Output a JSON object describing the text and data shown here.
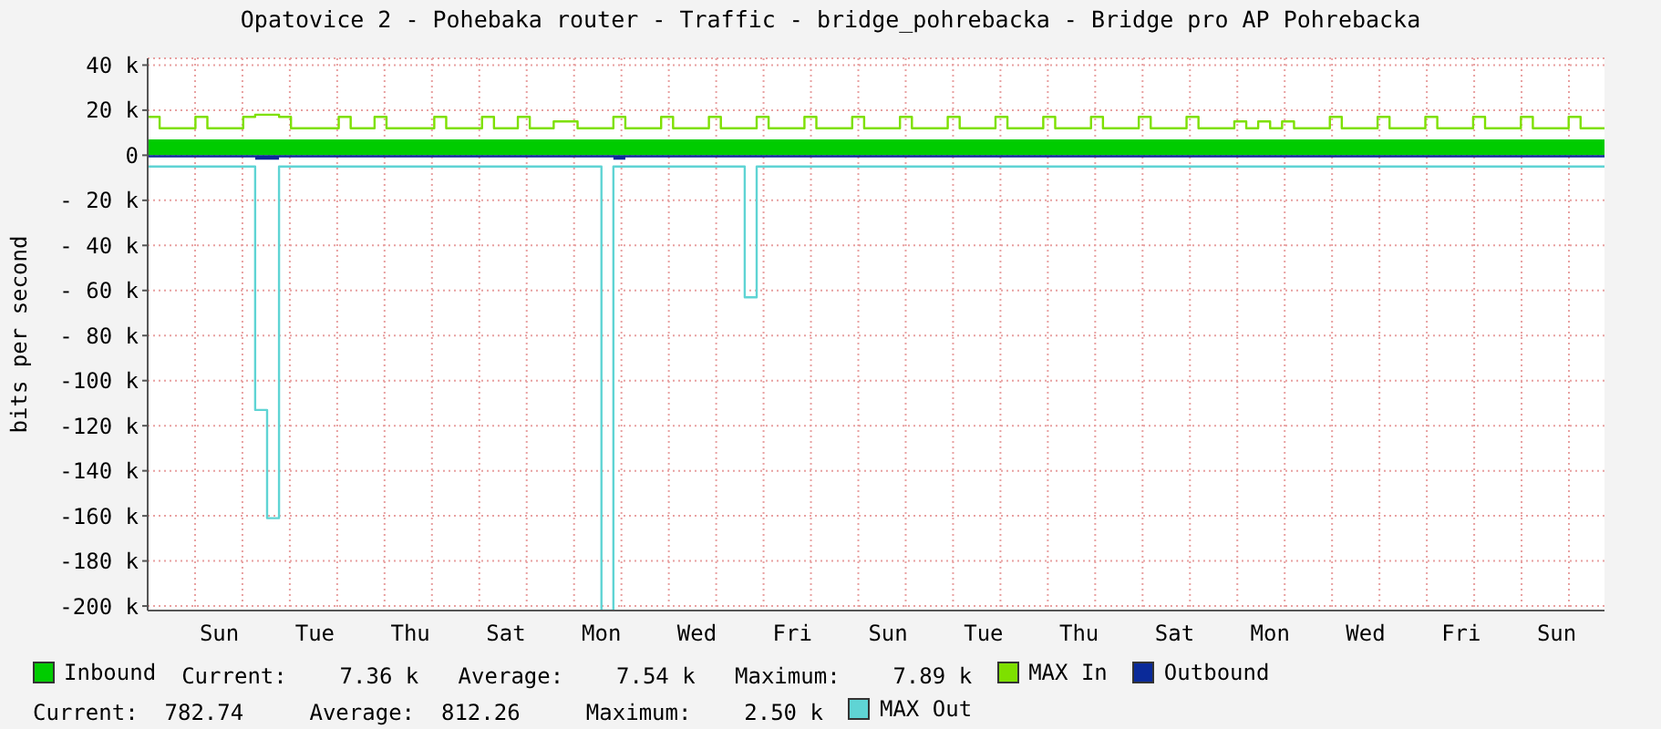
{
  "chart_data": {
    "type": "step",
    "title": "Opatovice 2 - Pohebaka router - Traffic - bridge_pohrebacka - Bridge pro AP Pohrebacka",
    "ylabel": "bits per second",
    "categories": [
      null,
      null,
      null,
      null,
      null,
      null,
      "Sun",
      null,
      null,
      null,
      null,
      null,
      null,
      null,
      "Tue",
      null,
      null,
      null,
      null,
      null,
      null,
      null,
      "Thu",
      null,
      null,
      null,
      null,
      null,
      null,
      null,
      "Sat",
      null,
      null,
      null,
      null,
      null,
      null,
      null,
      "Mon",
      null,
      null,
      null,
      null,
      null,
      null,
      null,
      "Wed",
      null,
      null,
      null,
      null,
      null,
      null,
      null,
      "Fri",
      null,
      null,
      null,
      null,
      null,
      null,
      null,
      "Sun",
      null,
      null,
      null,
      null,
      null,
      null,
      null,
      "Tue",
      null,
      null,
      null,
      null,
      null,
      null,
      null,
      "Thu",
      null,
      null,
      null,
      null,
      null,
      null,
      null,
      "Sat",
      null,
      null,
      null,
      null,
      null,
      null,
      null,
      "Mon",
      null,
      null,
      null,
      null,
      null,
      null,
      null,
      "Wed",
      null,
      null,
      null,
      null,
      null,
      null,
      null,
      "Fri",
      null,
      null,
      null,
      null,
      null,
      null,
      null,
      "Sun",
      null,
      null,
      null,
      null
    ],
    "ylim": [
      -202000,
      43000
    ],
    "yticks": [
      {
        "value": 40000,
        "label": "40 k"
      },
      {
        "value": 20000,
        "label": "20 k"
      },
      0,
      {
        "value": -20000,
        "label": "- 20 k"
      },
      {
        "value": -40000,
        "label": "- 40 k"
      },
      {
        "value": -60000,
        "label": "- 60 k"
      },
      {
        "value": -80000,
        "label": "- 80 k"
      },
      {
        "value": -100000,
        "label": "-100 k"
      },
      {
        "value": -120000,
        "label": "-120 k"
      },
      {
        "value": -140000,
        "label": "-140 k"
      },
      {
        "value": -160000,
        "label": "-160 k"
      },
      {
        "value": -180000,
        "label": "-180 k"
      },
      {
        "value": -200000,
        "label": "-200 k"
      }
    ],
    "grid": true,
    "legend": "bottom",
    "marker": "none",
    "annotations": [
      "Current:    7.36 k   Average:    7.54 k   Maximum:    7.89 k",
      "Current:  782.74     Average:  812.26     Maximum:    2.50 k"
    ],
    "series": [
      {
        "name": "Inbound",
        "type": "area",
        "color": "#00cc00",
        "values": [
          7000,
          7000,
          7000,
          7000,
          7000,
          7000,
          7000,
          7000,
          7000,
          7000,
          7000,
          7000,
          7000,
          7000,
          7000,
          7000,
          7000,
          7000,
          7000,
          7000,
          7000,
          7000,
          7000,
          7000,
          7000,
          7000,
          7000,
          7000,
          7000,
          7000,
          7000,
          7000,
          7000,
          7000,
          7000,
          7000,
          7000,
          7000,
          7000,
          7000,
          7000,
          7000,
          7000,
          7000,
          7000,
          7000,
          7000,
          7000,
          7000,
          7000,
          7000,
          7000,
          7000,
          7000,
          7000,
          7000,
          7000,
          7000,
          7000,
          7000,
          7000,
          7000,
          7000,
          7000,
          7000,
          7000,
          7000,
          7000,
          7000,
          7000,
          7000,
          7000,
          7000,
          7000,
          7000,
          7000,
          7000,
          7000,
          7000,
          7000,
          7000,
          7000,
          7000,
          7000,
          7000,
          7000,
          7000,
          7000,
          7000,
          7000,
          7000,
          7000,
          7000,
          7000,
          7000,
          7000,
          7000,
          7000,
          7000,
          7000,
          7000,
          7000,
          7000,
          7000,
          7000,
          7000,
          7000,
          7000,
          7000,
          7000,
          7000,
          7000,
          7000,
          7000,
          7000,
          7000,
          7000,
          7000,
          7000,
          7000,
          7000,
          7000,
          7000
        ]
      },
      {
        "name": "MAX In",
        "color": "#7ee000",
        "values": [
          17000,
          12000,
          12000,
          12000,
          17000,
          12000,
          12000,
          12000,
          17000,
          18000,
          18000,
          17000,
          12000,
          12000,
          12000,
          12000,
          17000,
          12000,
          12000,
          17000,
          12000,
          12000,
          12000,
          12000,
          17000,
          12000,
          12000,
          12000,
          17000,
          12000,
          12000,
          17000,
          12000,
          12000,
          15000,
          15000,
          12000,
          12000,
          12000,
          17000,
          12000,
          12000,
          12000,
          17000,
          12000,
          12000,
          12000,
          17000,
          12000,
          12000,
          12000,
          17000,
          12000,
          12000,
          12000,
          17000,
          12000,
          12000,
          12000,
          17000,
          12000,
          12000,
          12000,
          17000,
          12000,
          12000,
          12000,
          17000,
          12000,
          12000,
          12000,
          17000,
          12000,
          12000,
          12000,
          17000,
          12000,
          12000,
          12000,
          17000,
          12000,
          12000,
          12000,
          17000,
          12000,
          12000,
          12000,
          17000,
          12000,
          12000,
          12000,
          15000,
          12000,
          15000,
          12000,
          15000,
          12000,
          12000,
          12000,
          17000,
          12000,
          12000,
          12000,
          17000,
          12000,
          12000,
          12000,
          17000,
          12000,
          12000,
          12000,
          17000,
          12000,
          12000,
          12000,
          17000,
          12000,
          12000,
          12000,
          17000,
          12000,
          12000,
          12000
        ]
      },
      {
        "name": "Outbound",
        "type": "area",
        "color": "#0a2a99",
        "values": [
          -1000,
          -1000,
          -1000,
          -1000,
          -1000,
          -1000,
          -1000,
          -1000,
          -1000,
          -2000,
          -2000,
          -1000,
          -1000,
          -1000,
          -1000,
          -1000,
          -1000,
          -1000,
          -1000,
          -1000,
          -1000,
          -1000,
          -1000,
          -1000,
          -1000,
          -1000,
          -1000,
          -1000,
          -1000,
          -1000,
          -1000,
          -1000,
          -1000,
          -1000,
          -1000,
          -1000,
          -1000,
          -1000,
          -1000,
          -2000,
          -1000,
          -1000,
          -1000,
          -1000,
          -1000,
          -1000,
          -1000,
          -1000,
          -1000,
          -1000,
          -1000,
          -1000,
          -1000,
          -1000,
          -1000,
          -1000,
          -1000,
          -1000,
          -1000,
          -1000,
          -1000,
          -1000,
          -1000,
          -1000,
          -1000,
          -1000,
          -1000,
          -1000,
          -1000,
          -1000,
          -1000,
          -1000,
          -1000,
          -1000,
          -1000,
          -1000,
          -1000,
          -1000,
          -1000,
          -1000,
          -1000,
          -1000,
          -1000,
          -1000,
          -1000,
          -1000,
          -1000,
          -1000,
          -1000,
          -1000,
          -1000,
          -1000,
          -1000,
          -1000,
          -1000,
          -1000,
          -1000,
          -1000,
          -1000,
          -1000,
          -1000,
          -1000,
          -1000,
          -1000,
          -1000,
          -1000,
          -1000,
          -1000,
          -1000,
          -1000,
          -1000,
          -1000,
          -1000,
          -1000,
          -1000,
          -1000,
          -1000,
          -1000,
          -1000,
          -1000,
          -1000,
          -1000,
          -1000
        ]
      },
      {
        "name": "MAX Out",
        "color": "#5fd4d4",
        "values": [
          -5000,
          -5000,
          -5000,
          -5000,
          -5000,
          -5000,
          -5000,
          -5000,
          -5000,
          -113000,
          -161000,
          -5000,
          -5000,
          -5000,
          -5000,
          -5000,
          -5000,
          -5000,
          -5000,
          -5000,
          -5000,
          -5000,
          -5000,
          -5000,
          -5000,
          -5000,
          -5000,
          -5000,
          -5000,
          -5000,
          -5000,
          -5000,
          -5000,
          -5000,
          -5000,
          -5000,
          -5000,
          -5000,
          -202000,
          -5000,
          -5000,
          -5000,
          -5000,
          -5000,
          -5000,
          -5000,
          -5000,
          -5000,
          -5000,
          -5000,
          -63000,
          -5000,
          -5000,
          -5000,
          -5000,
          -5000,
          -5000,
          -5000,
          -5000,
          -5000,
          -5000,
          -5000,
          -5000,
          -5000,
          -5000,
          -5000,
          -5000,
          -5000,
          -5000,
          -5000,
          -5000,
          -5000,
          -5000,
          -5000,
          -5000,
          -5000,
          -5000,
          -5000,
          -5000,
          -5000,
          -5000,
          -5000,
          -5000,
          -5000,
          -5000,
          -5000,
          -5000,
          -5000,
          -5000,
          -5000,
          -5000,
          -5000,
          -5000,
          -5000,
          -5000,
          -5000,
          -5000,
          -5000,
          -5000,
          -5000,
          -5000,
          -5000,
          -5000,
          -5000,
          -5000,
          -5000,
          -5000,
          -5000,
          -5000,
          -5000,
          -5000,
          -5000,
          -5000,
          -5000,
          -5000,
          -5000,
          -5000,
          -5000,
          -5000,
          -5000,
          -5000,
          -5000,
          -5000
        ]
      }
    ]
  }
}
